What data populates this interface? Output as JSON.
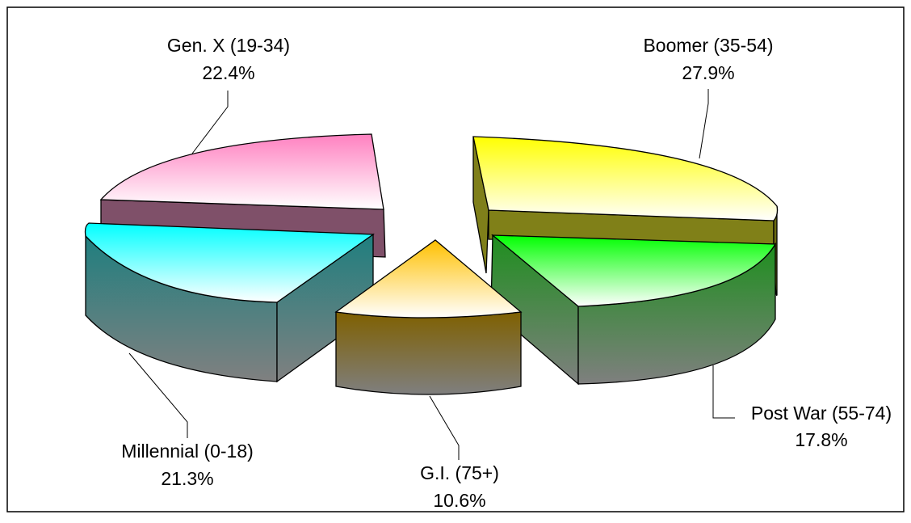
{
  "chart_data": {
    "type": "pie",
    "title": "",
    "legend": "none",
    "style": "3d-exploded",
    "slices": [
      {
        "label": "Boomer (35-54)",
        "value": 27.9,
        "percent_label": "27.9%",
        "color": "#ffff33"
      },
      {
        "label": "Post War (55-74)",
        "value": 17.8,
        "percent_label": "17.8%",
        "color": "#33ff33"
      },
      {
        "label": "G.I. (75+)",
        "value": 10.6,
        "percent_label": "10.6%",
        "color": "#ffcc33"
      },
      {
        "label": "Millennial (0-18)",
        "value": 21.3,
        "percent_label": "21.3%",
        "color": "#33ffff"
      },
      {
        "label": "Gen. X (19-34)",
        "value": 22.4,
        "percent_label": "22.4%",
        "color": "#ff99cc"
      }
    ]
  }
}
